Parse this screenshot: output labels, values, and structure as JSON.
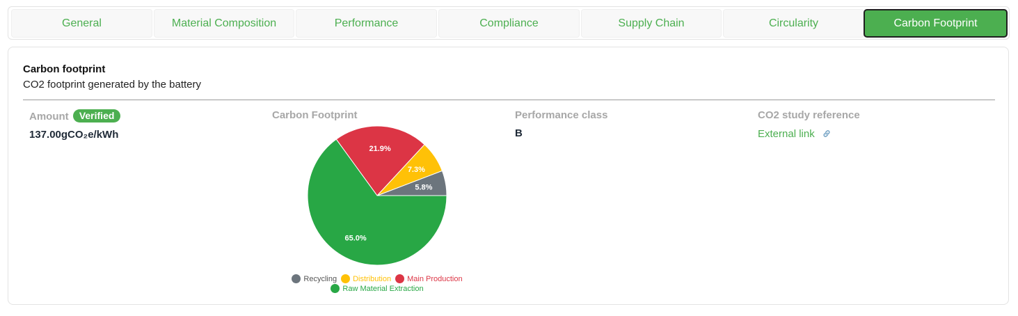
{
  "tabs": [
    {
      "label": "General",
      "active": false
    },
    {
      "label": "Material Composition",
      "active": false
    },
    {
      "label": "Performance",
      "active": false
    },
    {
      "label": "Compliance",
      "active": false
    },
    {
      "label": "Supply Chain",
      "active": false
    },
    {
      "label": "Circularity",
      "active": false
    },
    {
      "label": "Carbon Footprint",
      "active": true
    }
  ],
  "card": {
    "title": "Carbon footprint",
    "subtitle": "CO2 footprint generated by the battery"
  },
  "amount": {
    "label": "Amount",
    "badge": "Verified",
    "value": "137.00gCO₂e/kWh"
  },
  "footprint": {
    "label": "Carbon Footprint"
  },
  "performance": {
    "label": "Performance class",
    "value": "B"
  },
  "study": {
    "label": "CO2 study reference",
    "link_text": "External link",
    "link_icon": "link-icon"
  },
  "colors": {
    "accent": "#4caf50",
    "recycling": "#6c757d",
    "distribution": "#ffc107",
    "main_production": "#dc3545",
    "raw_material": "#28a745"
  },
  "chart_data": {
    "type": "pie",
    "title": "Carbon Footprint",
    "categories": [
      "Recycling",
      "Distribution",
      "Main Production",
      "Raw Material Extraction"
    ],
    "values": [
      5.8,
      7.3,
      21.9,
      65.0
    ],
    "labels": [
      "5.8%",
      "7.3%",
      "21.9%",
      "65.0%"
    ],
    "colors": [
      "#6c757d",
      "#ffc107",
      "#dc3545",
      "#28a745"
    ],
    "legend_position": "bottom"
  }
}
